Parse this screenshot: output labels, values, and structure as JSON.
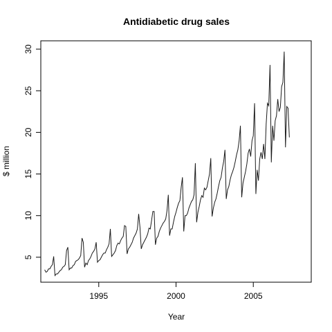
{
  "chart_data": {
    "type": "line",
    "title": "Antidiabetic drug sales",
    "xlabel": "Year",
    "ylabel": "$ million",
    "xlim": [
      1991.25,
      2008.75
    ],
    "ylim": [
      2.0,
      31.0
    ],
    "x_ticks": [
      1995,
      2000,
      2005
    ],
    "y_ticks": [
      5,
      10,
      15,
      20,
      25,
      30
    ],
    "grid": false,
    "legend": "none",
    "line_color": "#1a1a1a",
    "series": [
      {
        "start": 1991.5,
        "step": 0.08333,
        "values": [
          3.5,
          3.2,
          3.3,
          3.6,
          3.6,
          3.9,
          4.1,
          5.1,
          2.8,
          3.0,
          3.0,
          3.2,
          3.4,
          3.5,
          3.8,
          3.9,
          4.1,
          5.8,
          6.2,
          3.5,
          3.7,
          3.7,
          4.0,
          4.1,
          4.5,
          4.6,
          4.7,
          4.9,
          5.2,
          7.3,
          6.8,
          3.8,
          4.3,
          4.1,
          4.6,
          4.8,
          5.1,
          5.5,
          5.7,
          6.0,
          6.8,
          4.4,
          4.6,
          4.7,
          5.0,
          5.3,
          5.5,
          5.5,
          5.9,
          6.2,
          6.6,
          8.4,
          5.1,
          5.3,
          5.5,
          5.8,
          6.4,
          6.7,
          6.6,
          7.0,
          7.3,
          7.5,
          8.8,
          8.7,
          5.4,
          6.0,
          6.2,
          6.5,
          6.8,
          7.3,
          7.6,
          7.9,
          8.4,
          10.2,
          8.6,
          6.0,
          6.5,
          6.8,
          7.1,
          7.4,
          7.8,
          8.5,
          8.4,
          9.4,
          10.5,
          10.5,
          6.5,
          7.3,
          7.5,
          8.1,
          8.5,
          8.8,
          9.1,
          9.3,
          9.6,
          10.6,
          12.5,
          7.6,
          8.4,
          8.4,
          9.2,
          9.9,
          10.4,
          11.0,
          11.5,
          11.8,
          13.4,
          14.6,
          8.1,
          10.0,
          10.0,
          10.3,
          10.9,
          11.3,
          11.7,
          11.9,
          12.5,
          16.3,
          9.2,
          10.4,
          11.1,
          11.9,
          12.4,
          12.2,
          13.3,
          13.1,
          13.4,
          14.2,
          15.0,
          16.9,
          9.9,
          10.9,
          11.6,
          12.0,
          12.7,
          13.5,
          14.2,
          14.6,
          15.7,
          16.5,
          17.9,
          12.0,
          13.1,
          13.5,
          14.3,
          14.9,
          15.3,
          15.8,
          16.5,
          17.3,
          17.9,
          19.0,
          20.8,
          12.2,
          13.9,
          14.6,
          15.3,
          16.2,
          17.5,
          18.0,
          17.1,
          19.0,
          19.6,
          23.5,
          12.6,
          15.5,
          14.2,
          16.8,
          17.6,
          16.8,
          18.6,
          16.8,
          21.0,
          23.5,
          23.2,
          28.1,
          16.4,
          20.8,
          19.0,
          21.4,
          22.0,
          24.0,
          22.5,
          23.0,
          25.5,
          26.0,
          29.7,
          18.2,
          23.1,
          22.9,
          19.4
        ]
      }
    ]
  }
}
